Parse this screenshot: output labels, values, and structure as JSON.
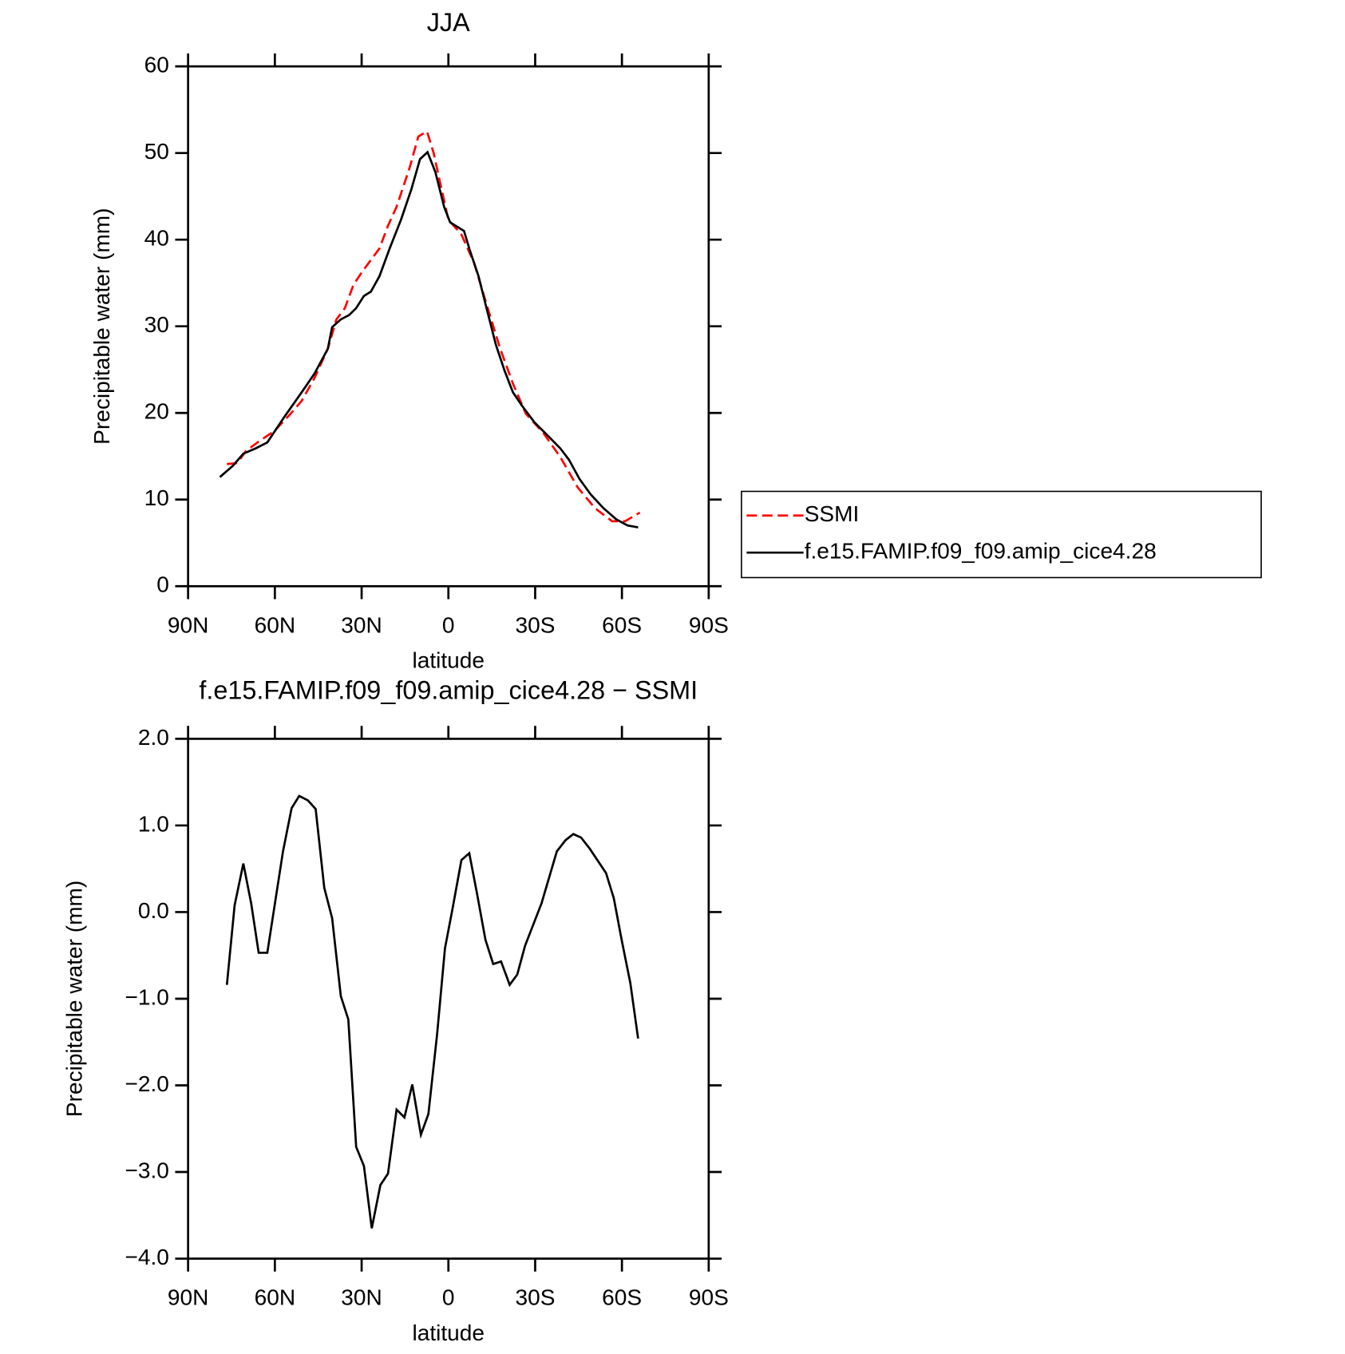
{
  "chart_data": [
    {
      "type": "line",
      "title": "JJA",
      "xlabel": "latitude",
      "ylabel": "Precipitable water (mm)",
      "xlim": [
        90,
        -90
      ],
      "xticks": [
        {
          "value": 90,
          "label": "90N"
        },
        {
          "value": 60,
          "label": "60N"
        },
        {
          "value": 30,
          "label": "30N"
        },
        0,
        {
          "value": -30,
          "label": "30S"
        },
        {
          "value": -60,
          "label": "60S"
        },
        {
          "value": -90,
          "label": "90S"
        }
      ],
      "ylim": [
        0,
        60
      ],
      "yticks": [
        0,
        10,
        20,
        30,
        40,
        50,
        60
      ],
      "legend": "outside-right",
      "series": [
        {
          "name": "SSMI",
          "color": "#ff0000",
          "linestyle": "dashed",
          "x": [
            76.6,
            73,
            70,
            65.6,
            60.2,
            55.1,
            50.7,
            46.2,
            41.7,
            38.7,
            35.8,
            32.8,
            29.8,
            23.8,
            20.9,
            17.9,
            13.4,
            10.4,
            7.4,
            5.1,
            3.0,
            0,
            -4.5,
            -8.9,
            -13.4,
            -17.9,
            -22.3,
            -26.8,
            -32.8,
            -38.7,
            -44.7,
            -50.7,
            -56.6,
            -61.1,
            -66.2
          ],
          "values": [
            14.1,
            14.2,
            15.6,
            16.7,
            17.9,
            19.7,
            21.4,
            24.1,
            27.4,
            30.8,
            32.1,
            34.8,
            36.3,
            39.0,
            41.6,
            43.8,
            48.3,
            51.9,
            52.5,
            50.0,
            46.8,
            42.3,
            40.6,
            37.3,
            32.3,
            27.4,
            23.4,
            19.9,
            17.7,
            14.9,
            11.4,
            9.0,
            7.5,
            7.5,
            8.5
          ]
        },
        {
          "name": "f.e15.FAMIP.f09_f09.amip_cice4.28",
          "color": "#000000",
          "linestyle": "solid",
          "x": [
            79,
            74.5,
            70.9,
            66.7,
            62.6,
            56.6,
            50.7,
            46.2,
            41.7,
            40.2,
            37.2,
            34.3,
            31.9,
            29.2,
            26.8,
            23.8,
            20.3,
            16.4,
            12.8,
            9.8,
            7.2,
            4.5,
            1.5,
            -0.6,
            -5.4,
            -7.4,
            -10.4,
            -13.4,
            -16.4,
            -19.4,
            -22.3,
            -25.3,
            -29.8,
            -34.3,
            -38.7,
            -41.7,
            -45.3,
            -49.2,
            -53.6,
            -58.1,
            -62,
            -65.6
          ],
          "values": [
            12.6,
            13.9,
            15.3,
            15.9,
            16.6,
            19.6,
            22.4,
            24.6,
            27.4,
            29.9,
            30.8,
            31.3,
            32.1,
            33.5,
            34.0,
            35.8,
            39.0,
            42.3,
            45.8,
            49.3,
            50.1,
            47.8,
            43.8,
            42.0,
            41.0,
            38.8,
            35.8,
            31.8,
            27.9,
            24.9,
            22.4,
            20.9,
            18.9,
            17.4,
            15.9,
            14.6,
            12.4,
            10.6,
            9.0,
            7.7,
            7.0,
            6.8
          ]
        }
      ]
    },
    {
      "type": "line",
      "title": "f.e15.FAMIP.f09_f09.amip_cice4.28 − SSMI",
      "xlabel": "latitude",
      "ylabel": "Precipitable water (mm)",
      "xlim": [
        90,
        -90
      ],
      "xticks": [
        {
          "value": 90,
          "label": "90N"
        },
        {
          "value": 60,
          "label": "60N"
        },
        {
          "value": 30,
          "label": "30N"
        },
        0,
        {
          "value": -30,
          "label": "30S"
        },
        {
          "value": -60,
          "label": "60S"
        },
        {
          "value": -90,
          "label": "90S"
        }
      ],
      "ylim": [
        -4,
        2
      ],
      "yticks": [
        {
          "value": -4,
          "label": "−4.0"
        },
        {
          "value": -3,
          "label": "−3.0"
        },
        {
          "value": -2,
          "label": "−2.0"
        },
        {
          "value": -1,
          "label": "−1.0"
        },
        {
          "value": 0,
          "label": "0.0"
        },
        {
          "value": 1,
          "label": "1.0"
        },
        {
          "value": 2,
          "label": "2.0"
        }
      ],
      "series": [
        {
          "color": "#000000",
          "linestyle": "solid",
          "x": [
            76.6,
            73.9,
            70.9,
            68.2,
            65.6,
            62.6,
            57.2,
            54.2,
            51.6,
            48.6,
            45.9,
            42.9,
            40.2,
            37.2,
            34.6,
            31.9,
            29.2,
            26.5,
            23.5,
            20.9,
            17.9,
            15.2,
            12.5,
            9.5,
            6.9,
            3.9,
            1.2,
            -1.5,
            -4.5,
            -7.2,
            -9.8,
            -12.8,
            -15.5,
            -18.2,
            -21.2,
            -23.8,
            -26.5,
            -32.2,
            -37.5,
            -40.5,
            -43.2,
            -45.9,
            -48.9,
            -54.5,
            -57.2,
            -59.9,
            -62.9,
            -65.6
          ],
          "values": [
            -0.84,
            0.08,
            0.56,
            0.1,
            -0.47,
            -0.47,
            0.7,
            1.2,
            1.34,
            1.29,
            1.19,
            0.28,
            -0.07,
            -0.97,
            -1.24,
            -2.71,
            -2.93,
            -3.65,
            -3.15,
            -3.02,
            -2.28,
            -2.37,
            -1.99,
            -2.57,
            -2.33,
            -1.41,
            -0.42,
            0.05,
            0.6,
            0.68,
            0.23,
            -0.32,
            -0.6,
            -0.57,
            -0.84,
            -0.72,
            -0.39,
            0.1,
            0.7,
            0.83,
            0.9,
            0.86,
            0.73,
            0.45,
            0.16,
            -0.32,
            -0.82,
            -1.46
          ]
        }
      ]
    }
  ]
}
